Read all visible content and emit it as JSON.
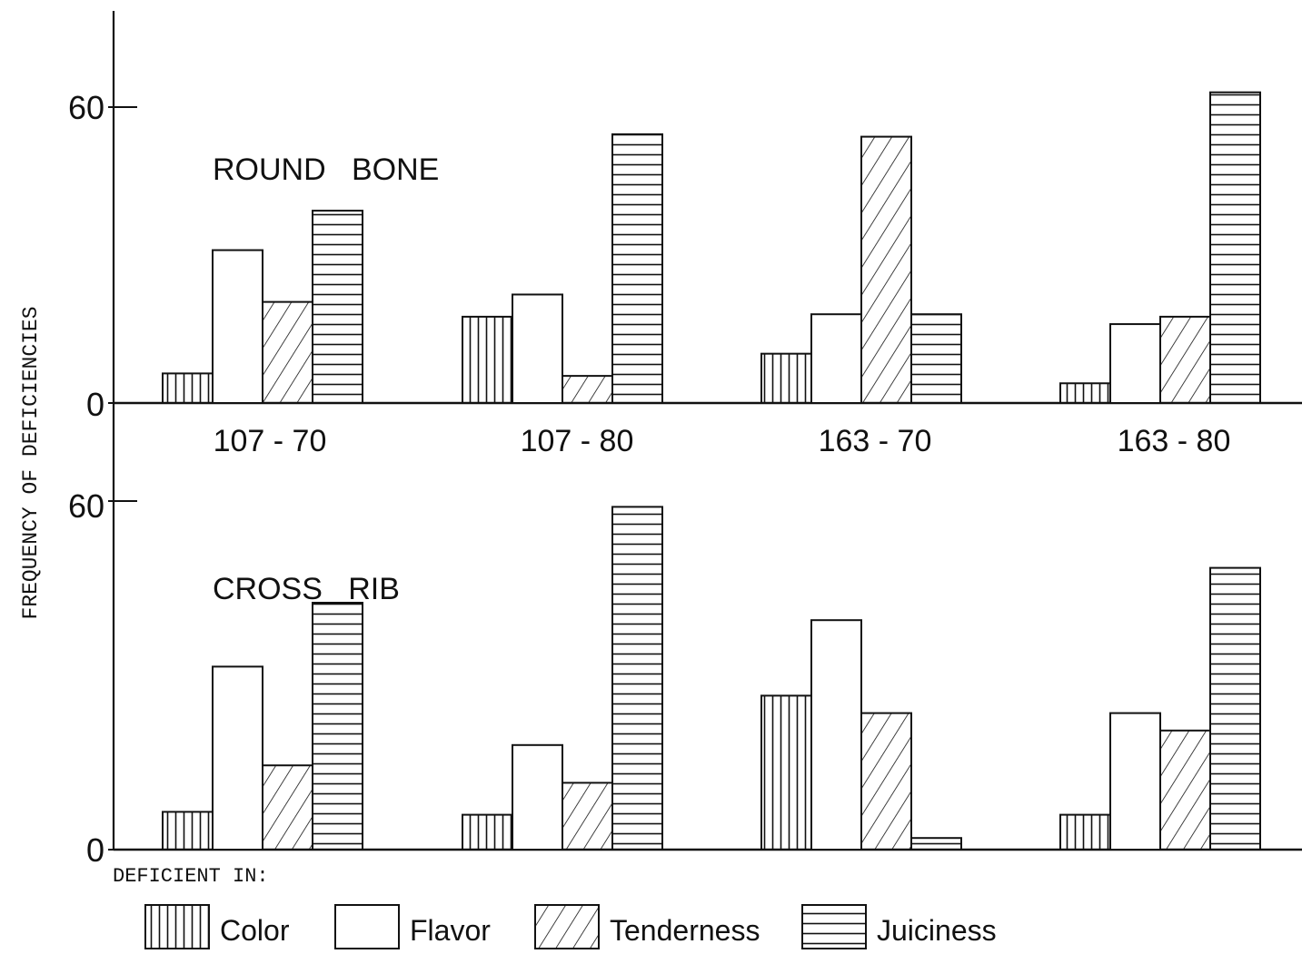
{
  "chart_data": {
    "type": "bar",
    "ylabel": "FREQUENCY OF DEFICIENCIES",
    "categories": [
      "107 - 70",
      "107 - 80",
      "163 - 70",
      "163 - 80"
    ],
    "legend": {
      "title": "DEFICIENT IN:",
      "position": "bottom",
      "entries": [
        {
          "label": "Color",
          "pattern": "vertical"
        },
        {
          "label": "Flavor",
          "pattern": "none"
        },
        {
          "label": "Tenderness",
          "pattern": "diagonal"
        },
        {
          "label": "Juiciness",
          "pattern": "horizontal"
        }
      ]
    },
    "panels": [
      {
        "title": "ROUND   BONE",
        "yticks": [
          0,
          60
        ],
        "ylim": [
          0,
          70
        ],
        "series": [
          {
            "name": "Color",
            "values": [
              6,
              17.5,
              10,
              4
            ]
          },
          {
            "name": "Flavor",
            "values": [
              31,
              22,
              18,
              16
            ]
          },
          {
            "name": "Tenderness",
            "values": [
              20.5,
              5.5,
              54,
              17.5
            ]
          },
          {
            "name": "Juiciness",
            "values": [
              39,
              54.5,
              18,
              63
            ]
          }
        ]
      },
      {
        "title": "CROSS   RIB",
        "yticks": [
          0,
          60
        ],
        "ylim": [
          0,
          70
        ],
        "series": [
          {
            "name": "Color",
            "values": [
              6.5,
              6,
              26.5,
              6
            ]
          },
          {
            "name": "Flavor",
            "values": [
              31.5,
              18,
              39.5,
              23.5
            ]
          },
          {
            "name": "Tenderness",
            "values": [
              14.5,
              11.5,
              23.5,
              20.5
            ]
          },
          {
            "name": "Juiciness",
            "values": [
              42.5,
              59,
              2,
              48.5
            ]
          }
        ]
      }
    ]
  }
}
